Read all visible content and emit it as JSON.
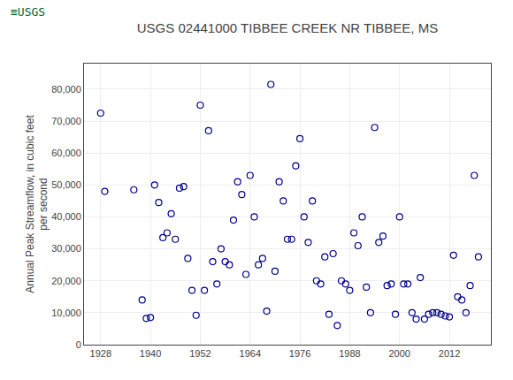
{
  "chart_data": {
    "type": "scatter",
    "title": "USGS 02441000 TIBBEE CREEK NR TIBBEE, MS",
    "annotations": [
      {
        "text": "≡USGS"
      }
    ],
    "y_label": "Annual Peak Streamflow, in cubic feet\nper second",
    "x": [
      1928,
      1929,
      1936,
      1938,
      1939,
      1940,
      1941,
      1942,
      1943,
      1944,
      1945,
      1946,
      1947,
      1948,
      1949,
      1950,
      1951,
      1952,
      1953,
      1954,
      1955,
      1956,
      1957,
      1958,
      1959,
      1960,
      1961,
      1962,
      1963,
      1964,
      1965,
      1966,
      1967,
      1968,
      1969,
      1970,
      1971,
      1972,
      1973,
      1974,
      1975,
      1976,
      1977,
      1978,
      1979,
      1980,
      1981,
      1982,
      1983,
      1984,
      1985,
      1986,
      1987,
      1988,
      1989,
      1990,
      1991,
      1992,
      1993,
      1994,
      1995,
      1996,
      1997,
      1998,
      1999,
      2000,
      2001,
      2002,
      2003,
      2004,
      2005,
      2006,
      2007,
      2008,
      2009,
      2010,
      2011,
      2012,
      2013,
      2014,
      2015,
      2016,
      2017,
      2018,
      2019
    ],
    "values": [
      72500,
      48000,
      48500,
      14000,
      8200,
      8500,
      50000,
      44500,
      33500,
      35000,
      41000,
      33000,
      49000,
      49500,
      27000,
      17000,
      9200,
      75000,
      17000,
      67000,
      26000,
      19000,
      30000,
      26000,
      25000,
      39000,
      51000,
      47000,
      22000,
      53000,
      40000,
      25000,
      27000,
      10500,
      81500,
      23000,
      51000,
      45000,
      33000,
      33000,
      56000,
      64500,
      40000,
      32000,
      45000,
      20000,
      19000,
      27500,
      9500,
      28500,
      6000,
      20000,
      19000,
      17000,
      35000,
      31000,
      40000,
      18000,
      10000,
      68000,
      32000,
      34000,
      18500,
      19000,
      9500,
      40000,
      19000,
      19000,
      10000,
      8000,
      21000,
      8000,
      9500,
      10000,
      10000,
      9500,
      9000,
      8700,
      28000,
      15000,
      14000,
      10000,
      18500,
      53000,
      27500
    ],
    "color": "#00008B",
    "marker": "circle-open",
    "xlim": [
      1924,
      2022
    ],
    "xticks": [
      1928,
      1940,
      1952,
      1964,
      1976,
      1988,
      2000,
      2012
    ],
    "ylim": [
      0,
      88000
    ],
    "yticks": [
      0,
      {
        "value": 10000,
        "label": "10,000"
      },
      {
        "value": 20000,
        "label": "20,000"
      },
      {
        "value": 30000,
        "label": "30,000"
      },
      {
        "value": 40000,
        "label": "40,000"
      },
      {
        "value": 50000,
        "label": "50,000"
      },
      {
        "value": 60000,
        "label": "60,000"
      },
      {
        "value": 70000,
        "label": "70,000"
      },
      {
        "value": 80000,
        "label": "80,000"
      }
    ],
    "grid": true
  }
}
